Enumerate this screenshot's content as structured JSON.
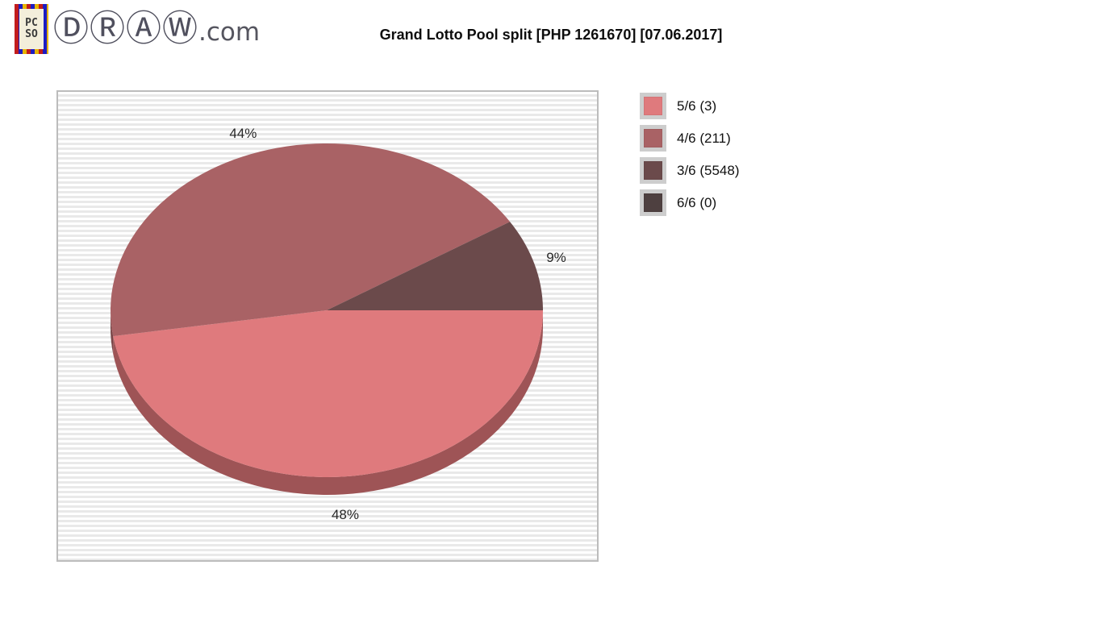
{
  "brand": {
    "stamp_top": "PC",
    "stamp_bottom": "SO",
    "name_circled": "ⒹⓇⒶⓌ",
    "name_suffix": ".com"
  },
  "title": "Grand Lotto Pool split [PHP 1261670] [07.06.2017]",
  "chart_data": {
    "type": "pie",
    "style": "3d",
    "title": "Grand Lotto Pool split [PHP 1261670] [07.06.2017]",
    "start_angle_deg": 0,
    "direction": "clockwise",
    "legend_position": "right",
    "slices": [
      {
        "label": "5/6",
        "count": 3,
        "pct": 48,
        "pct_label": "48%",
        "color": "#df7a7d",
        "side_color": "#9e5456",
        "legend_label": "5/6 (3)"
      },
      {
        "label": "4/6",
        "count": 211,
        "pct": 44,
        "pct_label": "44%",
        "color": "#a96265",
        "side_color": "#7a4648",
        "legend_label": "4/6 (211)"
      },
      {
        "label": "3/6",
        "count": 5548,
        "pct": 9,
        "pct_label": "9%",
        "color": "#6b4a4b",
        "side_color": "#503738",
        "legend_label": "3/6 (5548)"
      },
      {
        "label": "6/6",
        "count": 0,
        "pct": 0,
        "pct_label": "",
        "color": "#4e4040",
        "side_color": "#3a3030",
        "legend_label": "6/6 (0)"
      }
    ]
  }
}
